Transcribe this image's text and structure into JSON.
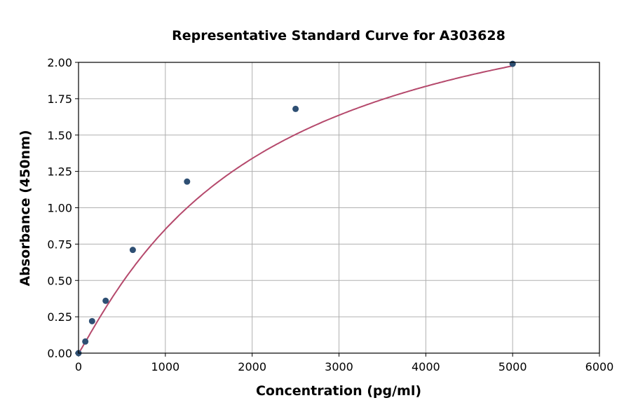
{
  "chart_data": {
    "type": "scatter",
    "title": "Representative Standard Curve for A303628",
    "xlabel": "Concentration (pg/ml)",
    "ylabel": "Absorbance (450nm)",
    "xlim": [
      0,
      6000
    ],
    "ylim": [
      0,
      2.0
    ],
    "xticks": [
      "0",
      "1000",
      "2000",
      "3000",
      "4000",
      "5000",
      "6000"
    ],
    "yticks": [
      "0.00",
      "0.25",
      "0.50",
      "0.75",
      "1.00",
      "1.25",
      "1.50",
      "1.75",
      "2.00"
    ],
    "grid": true,
    "points": [
      {
        "x": 0,
        "y": 0.0
      },
      {
        "x": 78.125,
        "y": 0.08
      },
      {
        "x": 156.25,
        "y": 0.22
      },
      {
        "x": 312.5,
        "y": 0.36
      },
      {
        "x": 625,
        "y": 0.71
      },
      {
        "x": 1250,
        "y": 1.18
      },
      {
        "x": 2500,
        "y": 1.68
      },
      {
        "x": 5000,
        "y": 1.99
      }
    ],
    "point_color": "#2e4f73",
    "curve_color": "#b5496c"
  }
}
